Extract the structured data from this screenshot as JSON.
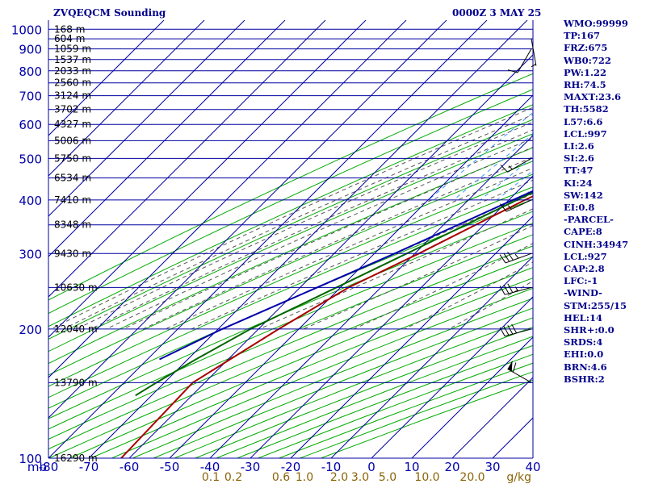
{
  "header": {
    "station_title": "ZVQEQCM Sounding",
    "time_title": "0000Z  3 MAY 25"
  },
  "indices": [
    "WMO:99999",
    "TP:167",
    "FRZ:675",
    "WB0:722",
    "PW:1.22",
    "RH:74.5",
    "MAXT:23.6",
    "TH:5582",
    "L57:6.6",
    "LCL:997",
    "LI:2.6",
    "SI:2.6",
    "TT:47",
    "KI:24",
    "SW:142",
    "EI:0.8",
    "-PARCEL-",
    "CAPE:8",
    "CINH:34947",
    "LCL:927",
    "CAP:2.8",
    "LFC:-1",
    "-WIND-",
    "STM:255/15",
    "HEL:14",
    "SHR+:0.0",
    "SRDS:4",
    "EHI:0.0",
    "BRN:4.6",
    "BSHR:2"
  ],
  "colors": {
    "isobar": "#0000a0",
    "isotherm": "#0000a0",
    "dry_adiabat": "#00aa00",
    "moist_adiabat": "#555555",
    "mixing_ratio": "#3399ff",
    "temperature": "#aa0000",
    "dewpoint": "#006600",
    "parcel": "#0000aa",
    "axis_text": "#0000aa",
    "mixing_text": "#8b6508"
  },
  "chart_data": {
    "type": "line",
    "title": "ZVQEQCM Sounding",
    "xlabel": "",
    "ylabel": "mb",
    "yscale": "log",
    "ylim": [
      1050,
      100
    ],
    "xlim": [
      -80,
      40
    ],
    "pressure_ticks": [
      100,
      200,
      300,
      400,
      500,
      600,
      700,
      800,
      900,
      1000
    ],
    "temperature_ticks": [
      -80,
      -70,
      -60,
      -50,
      -40,
      -30,
      -20,
      -10,
      0,
      10,
      20,
      30,
      40
    ],
    "mixing_ratio_labels": [
      "0.1",
      "0.2",
      "0.6",
      "1.0",
      "2.0",
      "3.0",
      "5.0",
      "10.0",
      "20.0"
    ],
    "mixing_ratio_unit": "g/kg",
    "height_labels": [
      {
        "p": 100,
        "text": "16290 m"
      },
      {
        "p": 150,
        "text": "13790 m"
      },
      {
        "p": 200,
        "text": "12040 m"
      },
      {
        "p": 250,
        "text": "10630 m"
      },
      {
        "p": 300,
        "text": "9430 m"
      },
      {
        "p": 350,
        "text": "8348 m"
      },
      {
        "p": 400,
        "text": "7410 m"
      },
      {
        "p": 450,
        "text": "6534 m"
      },
      {
        "p": 500,
        "text": "5750 m"
      },
      {
        "p": 550,
        "text": "5006 m"
      },
      {
        "p": 600,
        "text": "4327 m"
      },
      {
        "p": 650,
        "text": "3702 m"
      },
      {
        "p": 700,
        "text": "3124 m"
      },
      {
        "p": 750,
        "text": "2560 m"
      },
      {
        "p": 800,
        "text": "2033 m"
      },
      {
        "p": 850,
        "text": "1537 m"
      },
      {
        "p": 900,
        "text": "1059 m"
      },
      {
        "p": 950,
        "text": "604 m"
      },
      {
        "p": 1000,
        "text": "168 m"
      }
    ],
    "series": [
      {
        "key": "temperature",
        "points": [
          [
            1000,
            22
          ],
          [
            950,
            19
          ],
          [
            900,
            15
          ],
          [
            850,
            11
          ],
          [
            700,
            2
          ],
          [
            600,
            -5
          ],
          [
            500,
            -14
          ],
          [
            400,
            -26
          ],
          [
            300,
            -39
          ],
          [
            250,
            -48
          ],
          [
            200,
            -55
          ],
          [
            150,
            -63
          ],
          [
            100,
            -62
          ]
        ]
      },
      {
        "key": "dewpoint",
        "points": [
          [
            1000,
            20
          ],
          [
            950,
            16
          ],
          [
            920,
            14
          ],
          [
            900,
            14
          ],
          [
            850,
            12
          ],
          [
            700,
            -4
          ],
          [
            600,
            -9
          ],
          [
            550,
            -12
          ],
          [
            500,
            -16
          ],
          [
            400,
            -28
          ],
          [
            300,
            -42
          ],
          [
            200,
            -62
          ],
          [
            170,
            -68
          ],
          [
            150,
            -72
          ],
          [
            140,
            -74
          ]
        ]
      },
      {
        "key": "parcel",
        "points": [
          [
            1000,
            22
          ],
          [
            900,
            15
          ],
          [
            850,
            13
          ],
          [
            700,
            3
          ],
          [
            600,
            -5
          ],
          [
            500,
            -16
          ],
          [
            400,
            -29
          ],
          [
            300,
            -45
          ],
          [
            200,
            -69
          ],
          [
            170,
            -77
          ]
        ]
      }
    ],
    "wind_barbs": [
      {
        "p": 150,
        "dir": 300,
        "spd": 60
      },
      {
        "p": 200,
        "dir": 255,
        "spd": 40
      },
      {
        "p": 250,
        "dir": 255,
        "spd": 35
      },
      {
        "p": 300,
        "dir": 250,
        "spd": 35
      },
      {
        "p": 400,
        "dir": 245,
        "spd": 15
      },
      {
        "p": 500,
        "dir": 240,
        "spd": 15
      },
      {
        "p": 900,
        "dir": 210,
        "spd": 10
      },
      {
        "p": 950,
        "dir": 170,
        "spd": 5
      }
    ]
  }
}
